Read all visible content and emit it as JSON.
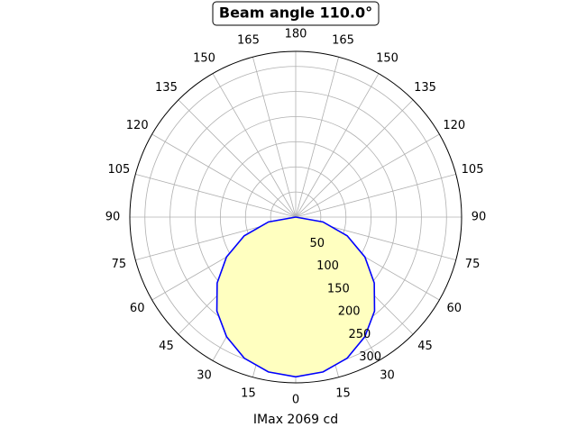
{
  "chart_data": {
    "type": "polar",
    "title": "Beam angle 110.0°",
    "xlabel": "IMax 2069 cd",
    "x": [
      -90,
      -80,
      -70,
      -60,
      -50,
      -40,
      -30,
      -20,
      -10,
      0,
      10,
      20,
      30,
      40,
      50,
      60,
      70,
      80,
      90
    ],
    "series": [
      {
        "color": "#0000ff",
        "fill": "#ffffc0",
        "values": [
          0,
          55,
          109,
          159,
          204,
          244,
          275,
          299,
          313,
          318,
          313,
          299,
          275,
          244,
          204,
          159,
          109,
          55,
          0
        ]
      }
    ],
    "xticks": [
      {
        "value": -165,
        "label": "165"
      },
      {
        "value": -150,
        "label": "150"
      },
      {
        "value": -135,
        "label": "135"
      },
      {
        "value": -120,
        "label": "120"
      },
      {
        "value": -105,
        "label": "105"
      },
      {
        "value": -90,
        "label": "90"
      },
      {
        "value": -75,
        "label": "75"
      },
      {
        "value": -60,
        "label": "60"
      },
      {
        "value": -45,
        "label": "45"
      },
      {
        "value": -30,
        "label": "30"
      },
      {
        "value": -15,
        "label": "15"
      },
      0,
      15,
      30,
      45,
      60,
      75,
      90,
      105,
      120,
      135,
      150,
      165,
      180
    ],
    "ylim": [
      0,
      330
    ],
    "yticks": [
      50,
      100,
      150,
      200,
      250,
      300
    ],
    "grid": true
  }
}
